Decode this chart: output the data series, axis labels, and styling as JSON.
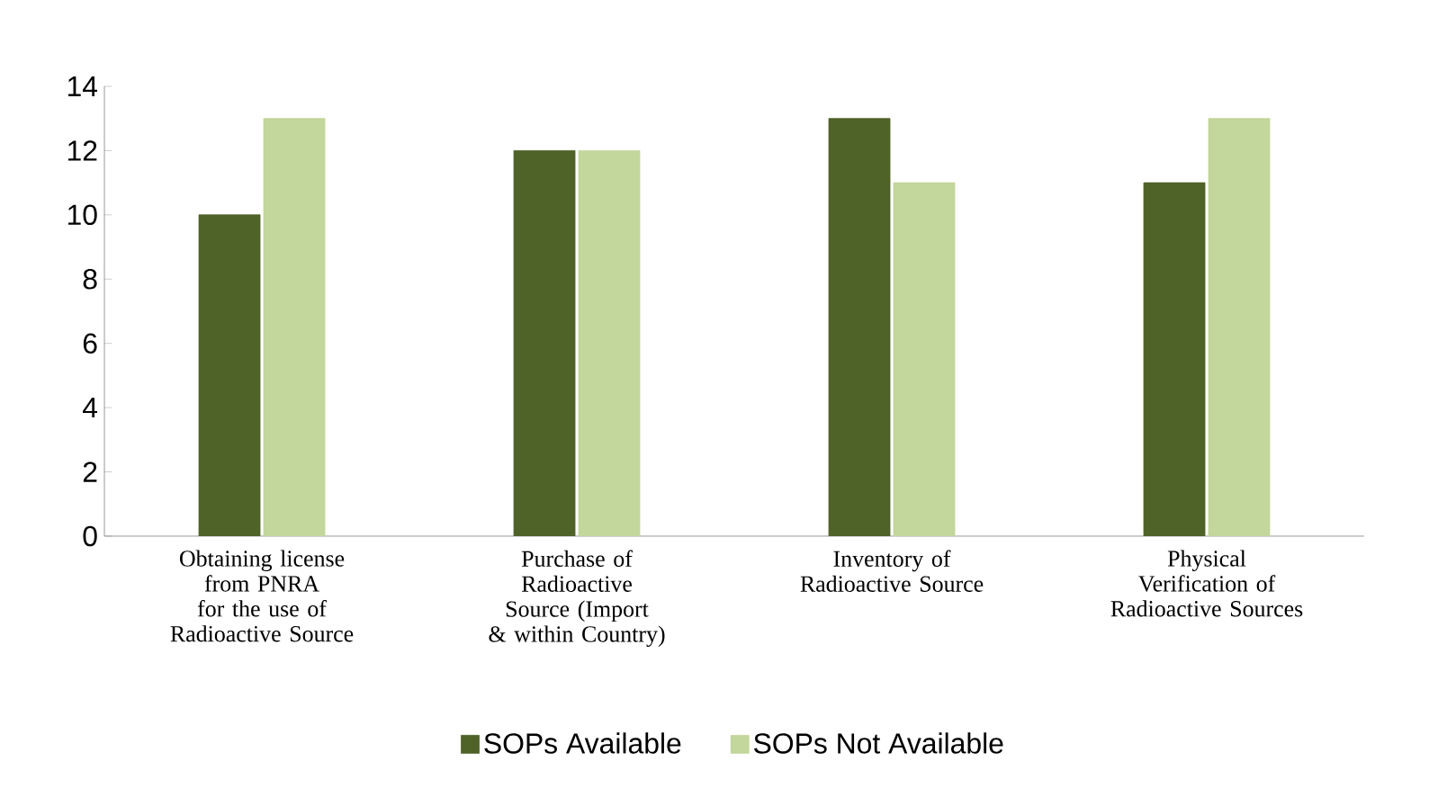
{
  "chart_data": {
    "type": "bar",
    "categories": [
      "Obtaining  license from PNRA for the use of Radioactive Source",
      "Purchase of Radioactive Source (Import & within Country)",
      "Inventory of Radioactive Source",
      "Physical Verification of Radioactive Sources"
    ],
    "series": [
      {
        "name": "SOPs Available",
        "color": "#4f6228",
        "values": [
          10,
          12,
          13,
          11
        ]
      },
      {
        "name": "SOPs Not Available",
        "color": "#c3d69b",
        "values": [
          13,
          12,
          11,
          13
        ]
      }
    ],
    "ylim": [
      0,
      14
    ],
    "yticks": [
      0,
      2,
      4,
      6,
      8,
      10,
      12,
      14
    ],
    "grid": false,
    "legend": "bottom"
  }
}
